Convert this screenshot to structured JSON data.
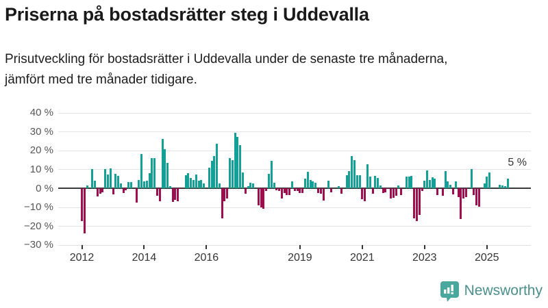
{
  "header": {
    "title": "Priserna på bostadsrätter steg i Uddevalla",
    "subtitle": "Prisutveckling för bostadsrätter i Uddevalla under de senaste tre månaderna, jämfört med tre månader tidigare."
  },
  "chart_data": {
    "type": "bar",
    "unit": "%",
    "title": "Priserna på bostadsrätter steg i Uddevalla",
    "subtitle": "Prisutveckling för bostadsrätter i Uddevalla under de senaste tre månaderna, jämfört med tre månader tidigare.",
    "ylim": [
      -30,
      40
    ],
    "grid": true,
    "y_ticks": [
      40,
      30,
      20,
      10,
      0,
      -10,
      -20,
      -30
    ],
    "y_tick_labels": [
      "40 %",
      "30 %",
      "20 %",
      "10 %",
      "0 %",
      "−10 %",
      "−20 %",
      "−30 %"
    ],
    "x_tick_labels": [
      "2012",
      "2014",
      "2016",
      "2019",
      "2021",
      "2023",
      "2025"
    ],
    "x_tick_month_index": [
      0,
      24,
      48,
      84,
      108,
      132,
      156
    ],
    "start_year": 2012,
    "start_month": 1,
    "frequency": "monthly",
    "series_name": "Prisutveckling jämfört med tre månader tidigare (%)",
    "months": [
      -17.5,
      -24,
      1.5,
      0,
      10,
      4,
      -4.5,
      -2.7,
      -2,
      10.3,
      7.3,
      10.7,
      -3.4,
      7.6,
      6.7,
      2.7,
      -2.4,
      -1,
      3.3,
      3.3,
      0,
      -7.5,
      4.5,
      18,
      3.5,
      4,
      8,
      15.8,
      16,
      -4,
      -7,
      26,
      20.5,
      13.3,
      1,
      -7.3,
      -6.3,
      -6.8,
      -0.5,
      0,
      7,
      8,
      5.5,
      4.5,
      7.3,
      4,
      4.2,
      2.5,
      0,
      11,
      14.5,
      17,
      23.6,
      2.5,
      -16,
      -7,
      -5.5,
      15.8,
      14.8,
      29.3,
      27.3,
      22.8,
      8.5,
      -2.7,
      1.2,
      3,
      2.5,
      0,
      -9.1,
      -10,
      -10.9,
      -1.5,
      7.5,
      14.5,
      3,
      -1,
      -1.5,
      -5.5,
      -2.5,
      -3.5,
      -3.5,
      3.5,
      -1.5,
      -1.5,
      -2.5,
      -2.5,
      5,
      8.7,
      4.5,
      3.7,
      2.8,
      -2.5,
      -3,
      -6.4,
      0,
      4,
      -2,
      0,
      0,
      1,
      -2.8,
      0,
      7,
      9,
      17,
      15,
      7,
      7,
      -5.7,
      -6.8,
      12.8,
      6,
      -3,
      6.5,
      5.5,
      1.5,
      -2.5,
      -2,
      -0.5,
      -5.5,
      -5,
      -4,
      1.5,
      -3.5,
      0,
      6,
      6,
      6.5,
      -16,
      -17.5,
      -14,
      -1.5,
      4,
      9.5,
      4.2,
      5.8,
      5,
      -3.6,
      0,
      -3.9,
      9.1,
      3.6,
      1.8,
      -3.4,
      3.6,
      -4.8,
      -16.4,
      -5.5,
      -4.8,
      0,
      10.3,
      -3.6,
      -9.1,
      -9.9,
      0,
      2.5,
      6,
      8.5,
      0,
      0,
      0,
      2,
      1.5,
      1,
      5
    ],
    "last_value_label": "5 %",
    "last_value": 5,
    "colors": {
      "positive": "#14a096",
      "negative": "#9c0e4e",
      "gridline": "#e2e2e2",
      "zero_axis": "#3a3a3a",
      "tick_text": "#555555"
    }
  },
  "footer": {
    "brand": "Newsworthy",
    "brand_color": "#4a8f8b",
    "logo_mark_color": "#4aa79e"
  }
}
